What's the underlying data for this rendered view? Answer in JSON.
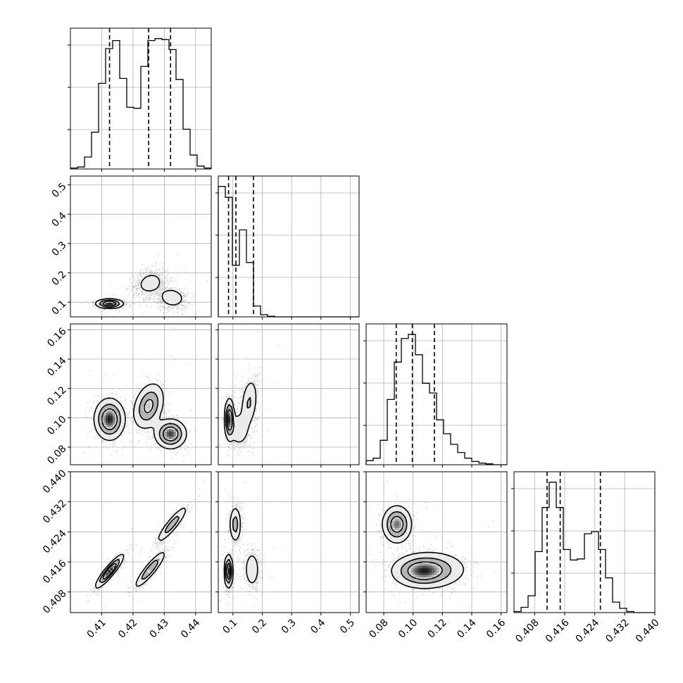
{
  "chart_data": {
    "type": "corner",
    "grid": true,
    "parameters": [
      {
        "range": [
          0.4,
          0.445
        ],
        "ticks": [
          "0.41",
          "0.42",
          "0.43",
          "0.44"
        ],
        "tick_values": [
          0.41,
          0.42,
          0.43,
          0.44
        ],
        "quantiles": [
          0.4125,
          0.425,
          0.432
        ],
        "hist": {
          "edges_start": 0.4,
          "bin_width": 0.00225,
          "counts": [
            1,
            2,
            12,
            37,
            86,
            121,
            129,
            91,
            62,
            61,
            103,
            129,
            131,
            130,
            120,
            90,
            40,
            14,
            3,
            1
          ]
        }
      },
      {
        "range": [
          0.05,
          0.53
        ],
        "ticks": [
          "0.1",
          "0.2",
          "0.3",
          "0.4",
          "0.5"
        ],
        "tick_values": [
          0.1,
          0.2,
          0.3,
          0.4,
          0.5
        ],
        "quantiles": [
          0.085,
          0.11,
          0.17
        ],
        "hist": {
          "edges_start": 0.05,
          "bin_width": 0.024,
          "counts": [
            240,
            220,
            95,
            160,
            100,
            20,
            4,
            1,
            0,
            0,
            0,
            0,
            0,
            0,
            0,
            0,
            0,
            0,
            0,
            0
          ]
        }
      },
      {
        "range": [
          0.068,
          0.164
        ],
        "ticks": [
          "0.08",
          "0.10",
          "0.12",
          "0.14",
          "0.16"
        ],
        "tick_values": [
          0.08,
          0.1,
          0.12,
          0.14,
          0.16
        ],
        "quantiles": [
          0.0885,
          0.0995,
          0.1145
        ],
        "hist": {
          "edges_start": 0.068,
          "bin_width": 0.0048,
          "counts": [
            5,
            8,
            30,
            80,
            126,
            155,
            160,
            135,
            100,
            88,
            55,
            38,
            25,
            15,
            8,
            4,
            2,
            1,
            0,
            0
          ]
        }
      },
      {
        "range": [
          0.4025,
          0.44
        ],
        "ticks": [
          "0.408",
          "0.416",
          "0.424",
          "0.432",
          "0.440"
        ],
        "tick_values": [
          0.408,
          0.416,
          0.424,
          0.432,
          0.44
        ],
        "quantiles": [
          0.4113,
          0.4148,
          0.4255
        ],
        "hist": {
          "edges_start": 0.4025,
          "bin_width": 0.001875,
          "counts": [
            1,
            5,
            16,
            58,
            100,
            124,
            100,
            60,
            50,
            51,
            75,
            77,
            60,
            33,
            10,
            4,
            1,
            0,
            0,
            0
          ]
        }
      }
    ],
    "density_blobs": [
      {
        "row": 1,
        "col": 0,
        "blobs": [
          {
            "mx": 0.4125,
            "my": 0.095,
            "sx": 0.0022,
            "sy": 0.008,
            "rho": 0.0,
            "w": 0.4
          },
          {
            "mx": 0.4255,
            "my": 0.165,
            "sx": 0.0028,
            "sy": 0.025,
            "rho": 0.2,
            "w": 0.32
          },
          {
            "mx": 0.4325,
            "my": 0.115,
            "sx": 0.0025,
            "sy": 0.02,
            "rho": -0.1,
            "w": 0.28
          }
        ]
      },
      {
        "row": 2,
        "col": 0,
        "blobs": [
          {
            "mx": 0.4125,
            "my": 0.099,
            "sx": 0.0024,
            "sy": 0.007,
            "rho": 0.0,
            "w": 0.4
          },
          {
            "mx": 0.425,
            "my": 0.108,
            "sx": 0.0025,
            "sy": 0.008,
            "rho": 0.3,
            "w": 0.32
          },
          {
            "mx": 0.432,
            "my": 0.089,
            "sx": 0.0025,
            "sy": 0.005,
            "rho": 0.0,
            "w": 0.28
          }
        ]
      },
      {
        "row": 2,
        "col": 1,
        "blobs": [
          {
            "mx": 0.088,
            "my": 0.099,
            "sx": 0.008,
            "sy": 0.007,
            "rho": 0.0,
            "w": 0.4
          },
          {
            "mx": 0.155,
            "my": 0.11,
            "sx": 0.015,
            "sy": 0.009,
            "rho": 0.3,
            "w": 0.35
          },
          {
            "mx": 0.12,
            "my": 0.092,
            "sx": 0.018,
            "sy": 0.006,
            "rho": 0.0,
            "w": 0.25
          }
        ]
      },
      {
        "row": 3,
        "col": 0,
        "blobs": [
          {
            "mx": 0.4125,
            "my": 0.4135,
            "sx": 0.0022,
            "sy": 0.0022,
            "rho": 0.9,
            "w": 0.4
          },
          {
            "mx": 0.4255,
            "my": 0.414,
            "sx": 0.0025,
            "sy": 0.0025,
            "rho": 0.9,
            "w": 0.32
          },
          {
            "mx": 0.4325,
            "my": 0.426,
            "sx": 0.0025,
            "sy": 0.0025,
            "rho": 0.9,
            "w": 0.28
          }
        ]
      },
      {
        "row": 3,
        "col": 1,
        "blobs": [
          {
            "mx": 0.085,
            "my": 0.4135,
            "sx": 0.007,
            "sy": 0.0022,
            "rho": 0.0,
            "w": 0.4
          },
          {
            "mx": 0.108,
            "my": 0.426,
            "sx": 0.01,
            "sy": 0.0025,
            "rho": 0.0,
            "w": 0.32
          },
          {
            "mx": 0.165,
            "my": 0.414,
            "sx": 0.013,
            "sy": 0.0025,
            "rho": 0.0,
            "w": 0.28
          }
        ]
      },
      {
        "row": 3,
        "col": 2,
        "blobs": [
          {
            "mx": 0.089,
            "my": 0.426,
            "sx": 0.005,
            "sy": 0.0025,
            "rho": 0.0,
            "w": 0.28
          },
          {
            "mx": 0.105,
            "my": 0.4135,
            "sx": 0.01,
            "sy": 0.0022,
            "rho": 0.0,
            "w": 0.4
          },
          {
            "mx": 0.115,
            "my": 0.414,
            "sx": 0.012,
            "sy": 0.0025,
            "rho": 0.0,
            "w": 0.32
          }
        ]
      }
    ]
  }
}
